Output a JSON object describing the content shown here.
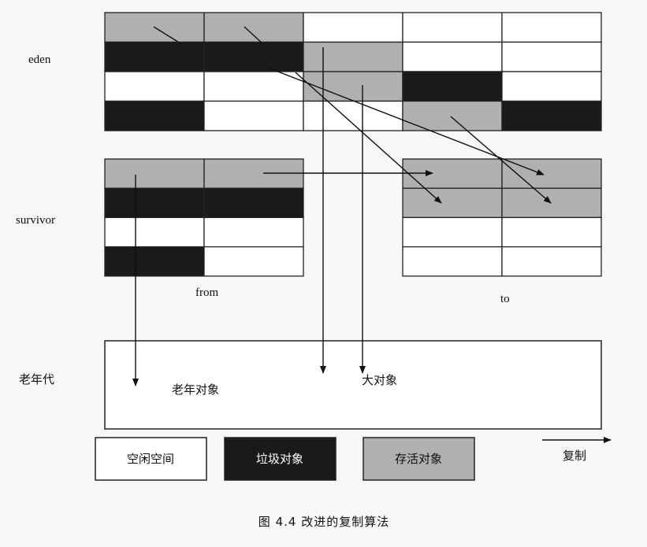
{
  "labels": {
    "eden": "eden",
    "survivor": "survivor",
    "from": "from",
    "to": "to",
    "old_gen": "老年代",
    "old_objects": "老年对象",
    "large_objects": "大对象",
    "copy": "复制"
  },
  "legend": {
    "free": "空闲空间",
    "garbage": "垃圾对象",
    "live": "存活对象"
  },
  "caption": "图 4.4   改进的复制算法",
  "colors": {
    "free": "#ffffff",
    "garbage": "#1a1a1a",
    "live": "#b0b0b0",
    "border": "#222222"
  },
  "grids": {
    "eden": [
      [
        "live",
        "live",
        "free",
        "free",
        "free"
      ],
      [
        "garbage",
        "garbage",
        "live",
        "free",
        "free"
      ],
      [
        "free",
        "free",
        "live",
        "garbage",
        "free"
      ],
      [
        "garbage",
        "free",
        "free",
        "live",
        "garbage"
      ]
    ],
    "from": [
      [
        "live",
        "live"
      ],
      [
        "garbage",
        "garbage"
      ],
      [
        "free",
        "free"
      ],
      [
        "garbage",
        "free"
      ]
    ],
    "to": [
      [
        "live",
        "live"
      ],
      [
        "live",
        "live"
      ],
      [
        "free",
        "free"
      ],
      [
        "free",
        "free"
      ]
    ]
  }
}
